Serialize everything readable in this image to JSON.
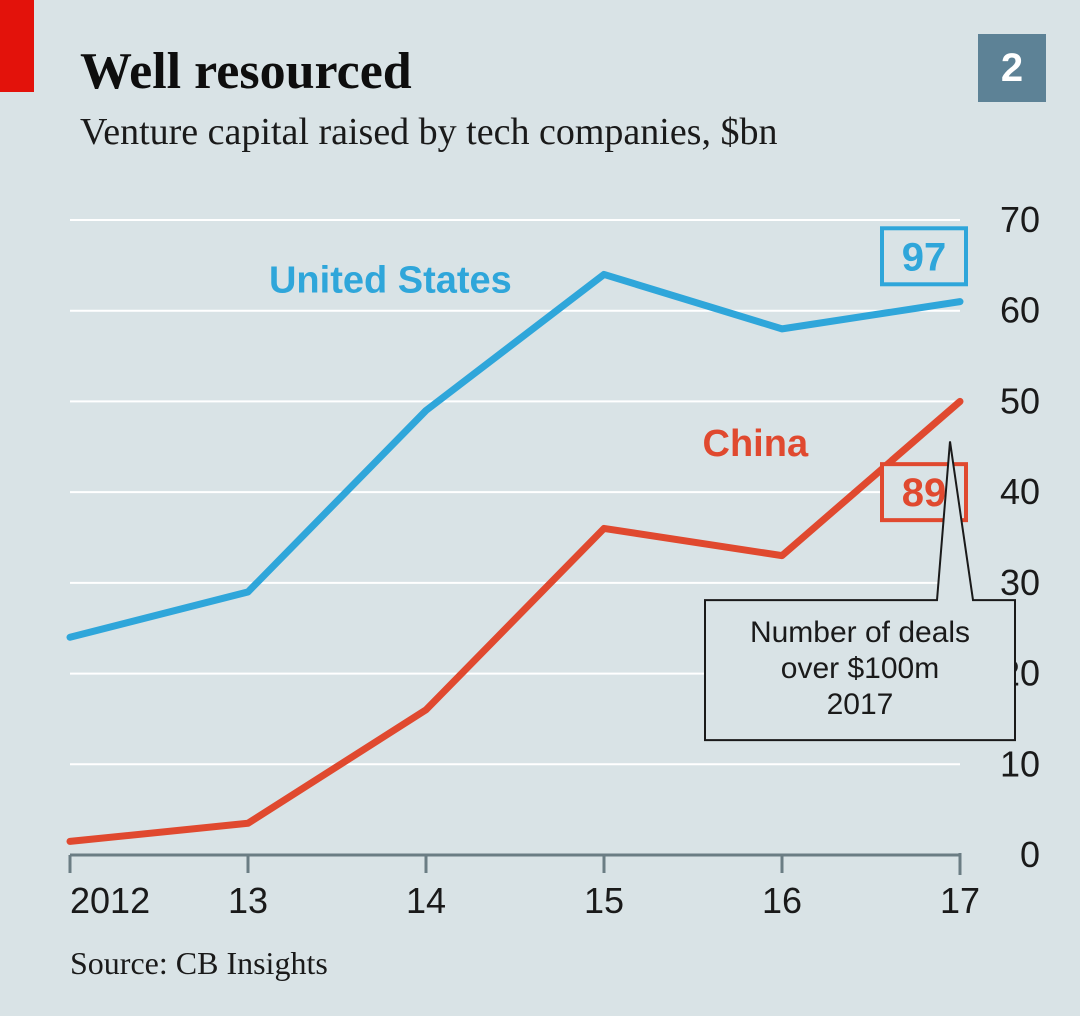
{
  "header": {
    "title": "Well resourced",
    "subtitle": "Venture capital raised by tech companies, $bn",
    "corner_number": "2",
    "title_fontsize": 52,
    "subtitle_fontsize": 38
  },
  "source": {
    "label": "Source: CB Insights",
    "fontsize": 32
  },
  "chart": {
    "type": "line",
    "background_color": "#d9e3e6",
    "x_categories": [
      "2012",
      "13",
      "14",
      "15",
      "16",
      "17"
    ],
    "ylim": [
      0,
      70
    ],
    "y_ticks": [
      0,
      10,
      20,
      30,
      40,
      50,
      60,
      70
    ],
    "gridline_color": "#ffffff",
    "gridline_width": 2,
    "axis_line_color": "#6b7d84",
    "axis_line_width": 3,
    "tick_fontsize": 36,
    "tick_color": "#1a1a1a",
    "line_width": 7,
    "series": [
      {
        "name": "United States",
        "label": "United States",
        "color": "#2fa6da",
        "values": [
          24,
          29,
          49,
          64,
          58,
          61
        ],
        "end_badge": "97"
      },
      {
        "name": "China",
        "label": "China",
        "color": "#e0492f",
        "values": [
          1.5,
          3.5,
          16,
          36,
          33,
          50
        ],
        "end_badge": "89"
      }
    ],
    "callout": {
      "lines": [
        "Number of deals",
        "over $100m",
        "2017"
      ],
      "fontsize": 30
    },
    "label_fontsize": 38,
    "badge_fontsize": 40,
    "corner_box_bg": "#5d8296",
    "corner_box_size": 68,
    "red_tab_color": "#e3120b"
  }
}
